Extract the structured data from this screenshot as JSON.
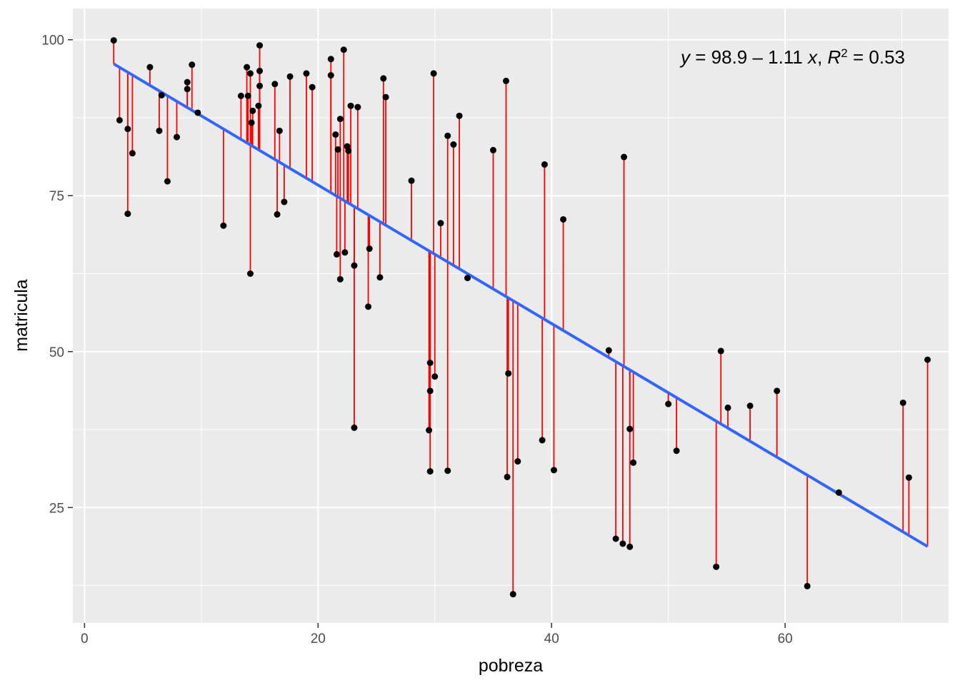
{
  "chart_data": {
    "type": "scatter",
    "xlabel": "pobreza",
    "ylabel": "matricula",
    "xlim": [
      -1,
      74
    ],
    "ylim": [
      6.5,
      105
    ],
    "x_ticks": [
      0,
      20,
      40,
      60
    ],
    "y_ticks": [
      25,
      50,
      75,
      100
    ],
    "x_tick_labels": [
      "0",
      "20",
      "40",
      "60"
    ],
    "y_tick_labels": [
      "25",
      "50",
      "75",
      "100"
    ],
    "grid": true,
    "regression": {
      "intercept": 98.9,
      "slope": -1.11,
      "r2": 0.53
    },
    "annotation": {
      "y_var": "y",
      "eq_body": " = 98.9 – 1.11 ",
      "x_var": "x",
      "sep": ", ",
      "r_var": "R",
      "r_sup": "2",
      "r_value": " = 0.53"
    },
    "colors": {
      "panel": "#EBEBEB",
      "grid_major": "#FFFFFF",
      "point": "#000000",
      "residual": "#FF0000",
      "fit": "#3366FF"
    },
    "points": [
      {
        "x": 2.5,
        "y": 99.9
      },
      {
        "x": 3.0,
        "y": 87.1
      },
      {
        "x": 3.7,
        "y": 85.7
      },
      {
        "x": 3.7,
        "y": 72.1
      },
      {
        "x": 4.1,
        "y": 81.8
      },
      {
        "x": 5.6,
        "y": 95.6
      },
      {
        "x": 6.4,
        "y": 85.4
      },
      {
        "x": 6.6,
        "y": 91.1
      },
      {
        "x": 7.1,
        "y": 77.3
      },
      {
        "x": 7.9,
        "y": 84.4
      },
      {
        "x": 8.8,
        "y": 93.2
      },
      {
        "x": 8.8,
        "y": 92.1
      },
      {
        "x": 9.2,
        "y": 96.0
      },
      {
        "x": 9.7,
        "y": 88.3
      },
      {
        "x": 11.9,
        "y": 70.2
      },
      {
        "x": 13.4,
        "y": 91.0
      },
      {
        "x": 13.9,
        "y": 95.6
      },
      {
        "x": 14.0,
        "y": 91.0
      },
      {
        "x": 14.2,
        "y": 94.6
      },
      {
        "x": 14.2,
        "y": 62.5
      },
      {
        "x": 14.3,
        "y": 86.7
      },
      {
        "x": 14.4,
        "y": 88.6
      },
      {
        "x": 14.9,
        "y": 89.4
      },
      {
        "x": 15.0,
        "y": 99.1
      },
      {
        "x": 15.0,
        "y": 95.0
      },
      {
        "x": 15.0,
        "y": 92.6
      },
      {
        "x": 16.3,
        "y": 92.9
      },
      {
        "x": 16.5,
        "y": 72.0
      },
      {
        "x": 16.7,
        "y": 85.4
      },
      {
        "x": 17.1,
        "y": 74.0
      },
      {
        "x": 17.6,
        "y": 94.1
      },
      {
        "x": 19.0,
        "y": 94.6
      },
      {
        "x": 19.5,
        "y": 92.4
      },
      {
        "x": 21.1,
        "y": 96.9
      },
      {
        "x": 21.1,
        "y": 94.3
      },
      {
        "x": 21.5,
        "y": 84.8
      },
      {
        "x": 21.7,
        "y": 82.4
      },
      {
        "x": 21.6,
        "y": 65.6
      },
      {
        "x": 21.9,
        "y": 87.3
      },
      {
        "x": 21.9,
        "y": 61.6
      },
      {
        "x": 22.2,
        "y": 98.4
      },
      {
        "x": 22.3,
        "y": 65.9
      },
      {
        "x": 22.5,
        "y": 82.9
      },
      {
        "x": 22.6,
        "y": 82.2
      },
      {
        "x": 22.8,
        "y": 89.4
      },
      {
        "x": 23.1,
        "y": 63.8
      },
      {
        "x": 23.1,
        "y": 37.8
      },
      {
        "x": 23.4,
        "y": 89.2
      },
      {
        "x": 24.3,
        "y": 57.2
      },
      {
        "x": 24.4,
        "y": 66.5
      },
      {
        "x": 25.3,
        "y": 61.9
      },
      {
        "x": 25.6,
        "y": 93.8
      },
      {
        "x": 25.8,
        "y": 90.8
      },
      {
        "x": 28.0,
        "y": 77.4
      },
      {
        "x": 29.6,
        "y": 48.2
      },
      {
        "x": 29.6,
        "y": 43.7
      },
      {
        "x": 29.5,
        "y": 37.4
      },
      {
        "x": 29.6,
        "y": 30.8
      },
      {
        "x": 29.9,
        "y": 94.6
      },
      {
        "x": 30.0,
        "y": 46.0
      },
      {
        "x": 30.5,
        "y": 70.6
      },
      {
        "x": 31.1,
        "y": 84.6
      },
      {
        "x": 31.1,
        "y": 30.9
      },
      {
        "x": 31.6,
        "y": 83.2
      },
      {
        "x": 32.1,
        "y": 87.8
      },
      {
        "x": 32.8,
        "y": 61.8
      },
      {
        "x": 35.0,
        "y": 82.3
      },
      {
        "x": 36.1,
        "y": 93.4
      },
      {
        "x": 36.3,
        "y": 46.5
      },
      {
        "x": 36.2,
        "y": 29.9
      },
      {
        "x": 36.7,
        "y": 11.1
      },
      {
        "x": 37.1,
        "y": 32.4
      },
      {
        "x": 39.2,
        "y": 35.8
      },
      {
        "x": 39.4,
        "y": 80.0
      },
      {
        "x": 40.2,
        "y": 31.0
      },
      {
        "x": 41.0,
        "y": 71.2
      },
      {
        "x": 44.9,
        "y": 50.2
      },
      {
        "x": 45.5,
        "y": 20.0
      },
      {
        "x": 46.1,
        "y": 19.2
      },
      {
        "x": 46.2,
        "y": 81.2
      },
      {
        "x": 46.7,
        "y": 37.6
      },
      {
        "x": 46.7,
        "y": 18.7
      },
      {
        "x": 47.0,
        "y": 32.2
      },
      {
        "x": 50.0,
        "y": 41.6
      },
      {
        "x": 50.7,
        "y": 34.1
      },
      {
        "x": 54.1,
        "y": 15.5
      },
      {
        "x": 54.5,
        "y": 50.1
      },
      {
        "x": 55.1,
        "y": 41.0
      },
      {
        "x": 57.0,
        "y": 41.3
      },
      {
        "x": 59.3,
        "y": 43.7
      },
      {
        "x": 61.9,
        "y": 12.4
      },
      {
        "x": 64.6,
        "y": 27.4
      },
      {
        "x": 70.1,
        "y": 41.8
      },
      {
        "x": 70.6,
        "y": 29.8
      },
      {
        "x": 72.2,
        "y": 48.7
      }
    ]
  }
}
